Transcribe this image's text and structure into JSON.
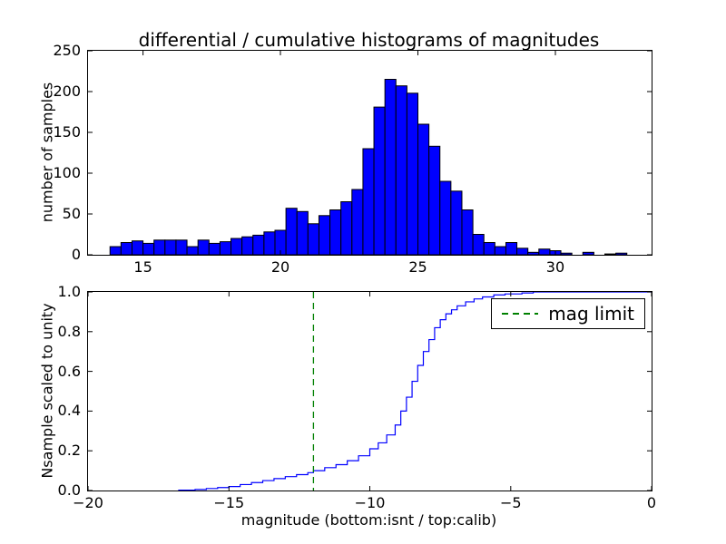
{
  "figure": {
    "background_color": "#ffffff",
    "accent_blue": "#0000ff",
    "accent_green": "#008000"
  },
  "chart_data": [
    {
      "type": "bar",
      "name": "differential-histogram",
      "title": "differential / cumulative histograms of magnitudes",
      "ylabel": "number of samples",
      "xlim": [
        13,
        33.5
      ],
      "ylim": [
        0,
        250
      ],
      "bar_color": "#0000ff",
      "bar_edge_color": "#000000",
      "bin_start": 13.8,
      "bin_width": 0.4,
      "values": [
        10,
        15,
        17,
        14,
        18,
        18,
        18,
        10,
        18,
        14,
        16,
        20,
        22,
        24,
        28,
        30,
        57,
        53,
        38,
        48,
        55,
        65,
        80,
        130,
        181,
        215,
        207,
        198,
        160,
        133,
        90,
        78,
        55,
        25,
        15,
        10,
        15,
        8,
        3,
        7,
        5,
        2,
        0,
        3,
        0,
        1,
        2
      ],
      "xticks": [
        15,
        20,
        25,
        30
      ],
      "xtick_labels": [
        "15",
        "20",
        "25",
        "30"
      ],
      "yticks": [
        0,
        50,
        100,
        150,
        200,
        250
      ],
      "ytick_labels": [
        "0",
        "50",
        "100",
        "150",
        "200",
        "250"
      ],
      "grid": false
    },
    {
      "type": "line",
      "name": "cumulative-histogram",
      "ylabel": "Nsample scaled to unity",
      "xlabel": "magnitude (bottom:isnt / top:calib)",
      "xlim": [
        -20,
        0
      ],
      "ylim": [
        0,
        1
      ],
      "line_color": "#0000ff",
      "step": true,
      "x": [
        -16.8,
        -16.2,
        -15.8,
        -15.4,
        -15.0,
        -14.6,
        -14.2,
        -13.8,
        -13.4,
        -13.0,
        -12.6,
        -12.2,
        -12.0,
        -11.6,
        -11.2,
        -10.8,
        -10.4,
        -10.0,
        -9.7,
        -9.4,
        -9.1,
        -8.9,
        -8.7,
        -8.5,
        -8.3,
        -8.1,
        -7.9,
        -7.7,
        -7.5,
        -7.3,
        -7.1,
        -6.9,
        -6.6,
        -6.3,
        -6.0,
        -5.6,
        -5.2,
        -4.6,
        -4.2,
        0.0
      ],
      "y": [
        0.002,
        0.005,
        0.01,
        0.015,
        0.02,
        0.03,
        0.04,
        0.05,
        0.06,
        0.07,
        0.08,
        0.09,
        0.1,
        0.115,
        0.13,
        0.15,
        0.175,
        0.21,
        0.24,
        0.28,
        0.33,
        0.4,
        0.47,
        0.55,
        0.63,
        0.7,
        0.76,
        0.82,
        0.86,
        0.89,
        0.91,
        0.93,
        0.95,
        0.965,
        0.975,
        0.985,
        0.99,
        0.995,
        1.0,
        1.0
      ],
      "vline": {
        "x": -12,
        "color": "#008000",
        "style": "dashed",
        "label": "mag limit"
      },
      "legend": {
        "position": "upper right",
        "entries": [
          {
            "label": "mag limit",
            "color": "#008000",
            "style": "dashed"
          }
        ]
      },
      "xticks": [
        -20,
        -15,
        -10,
        -5,
        0
      ],
      "xtick_labels": [
        "−20",
        "−15",
        "−10",
        "−5",
        "0"
      ],
      "yticks": [
        0,
        0.2,
        0.4,
        0.6,
        0.8,
        1.0
      ],
      "ytick_labels": [
        "0.0",
        "0.2",
        "0.4",
        "0.6",
        "0.8",
        "1.0"
      ],
      "grid": false
    }
  ]
}
